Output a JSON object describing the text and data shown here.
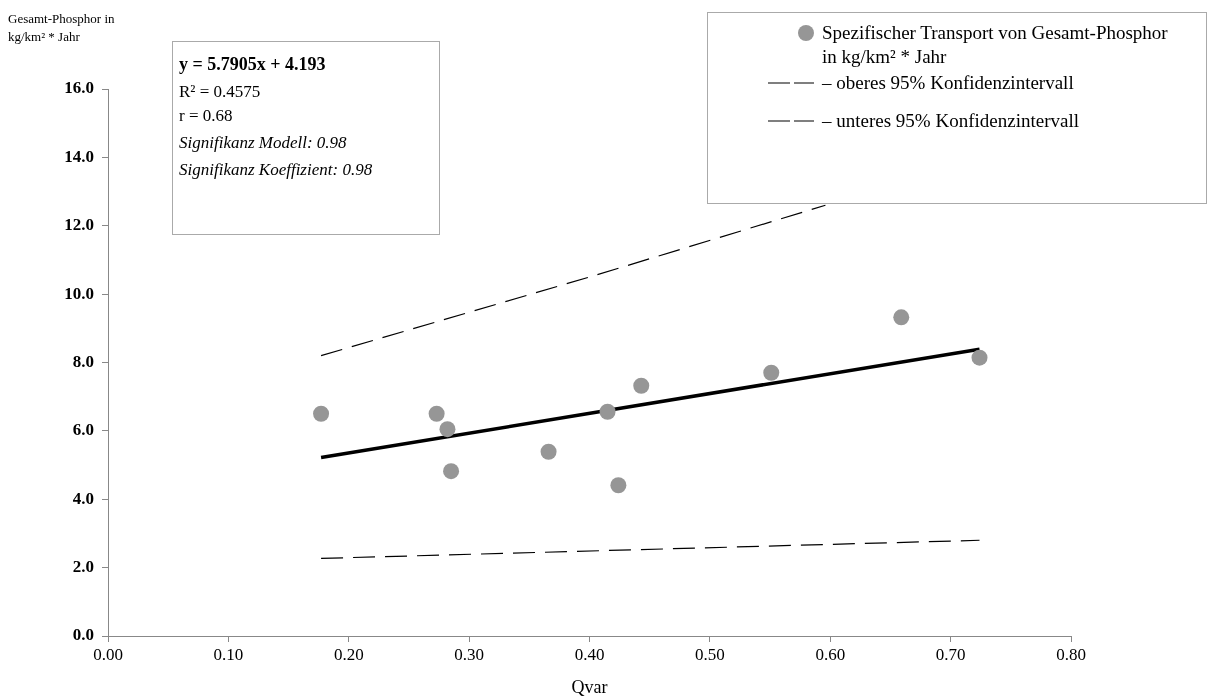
{
  "chart_data": {
    "type": "scatter",
    "ylabel": "Gesamt-Phosphor in kg/km² * Jahr",
    "xlabel": "Qvar",
    "annotations": [
      "y = 5.7905x + 4.193",
      "R² = 0.4575",
      "r = 0.68",
      "Signifikanz Modell: 0.98",
      "Signifikanz Koeffizient: 0.98"
    ],
    "xlim": [
      0,
      0.8
    ],
    "xticks": [
      {
        "value": 0,
        "label": "0.00"
      },
      {
        "value": 0.1,
        "label": "0.10"
      },
      {
        "value": 0.2,
        "label": "0.20"
      },
      {
        "value": 0.3,
        "label": "0.30"
      },
      {
        "value": 0.4,
        "label": "0.40"
      },
      {
        "value": 0.5,
        "label": "0.50"
      },
      {
        "value": 0.6,
        "label": "0.60"
      },
      {
        "value": 0.7,
        "label": "0.70"
      },
      {
        "value": 0.8,
        "label": "0.80"
      }
    ],
    "ylim": [
      0,
      16
    ],
    "yticks": [
      {
        "value": 0,
        "label": "0.0"
      },
      {
        "value": 2,
        "label": "2.0"
      },
      {
        "value": 4,
        "label": "4.0"
      },
      {
        "value": 6,
        "label": "6.0"
      },
      {
        "value": 8,
        "label": "8.0"
      },
      {
        "value": 10,
        "label": "10.0"
      },
      {
        "value": 12,
        "label": "12.0"
      },
      {
        "value": 14,
        "label": "14.0"
      },
      {
        "value": 16,
        "label": "16.0"
      }
    ],
    "grid": false,
    "legend": "top right",
    "series": [
      {
        "type": "scatter",
        "name": "Spezifischer Transport von Gesamt-Phosphor in kg/km² * Jahr",
        "color": "#969696",
        "marker": "circle",
        "x": [
          0.177,
          0.273,
          0.282,
          0.285,
          0.366,
          0.415,
          0.424,
          0.443,
          0.551,
          0.659,
          0.724
        ],
        "values": [
          6.5,
          6.5,
          6.05,
          4.82,
          5.39,
          6.56,
          4.41,
          7.32,
          7.7,
          9.32,
          8.14
        ]
      },
      {
        "type": "line",
        "name": "– oberes 95% Konfidenzintervall",
        "color": "#000000",
        "line_style": "dashed",
        "marker": "none",
        "x": [
          0.177,
          0.4,
          0.596
        ],
        "values": [
          8.2,
          10.5,
          12.6
        ]
      },
      {
        "type": "line",
        "name": "– unteres 95% Konfidenzintervall",
        "color": "#000000",
        "line_style": "dashed",
        "marker": "none",
        "x": [
          0.177,
          0.724
        ],
        "values": [
          2.27,
          2.8
        ]
      },
      {
        "type": "line",
        "color": "#000000",
        "line_style": "solid",
        "marker": "none",
        "x": [
          0.177,
          0.724
        ],
        "values": [
          5.22,
          8.39
        ]
      }
    ]
  }
}
